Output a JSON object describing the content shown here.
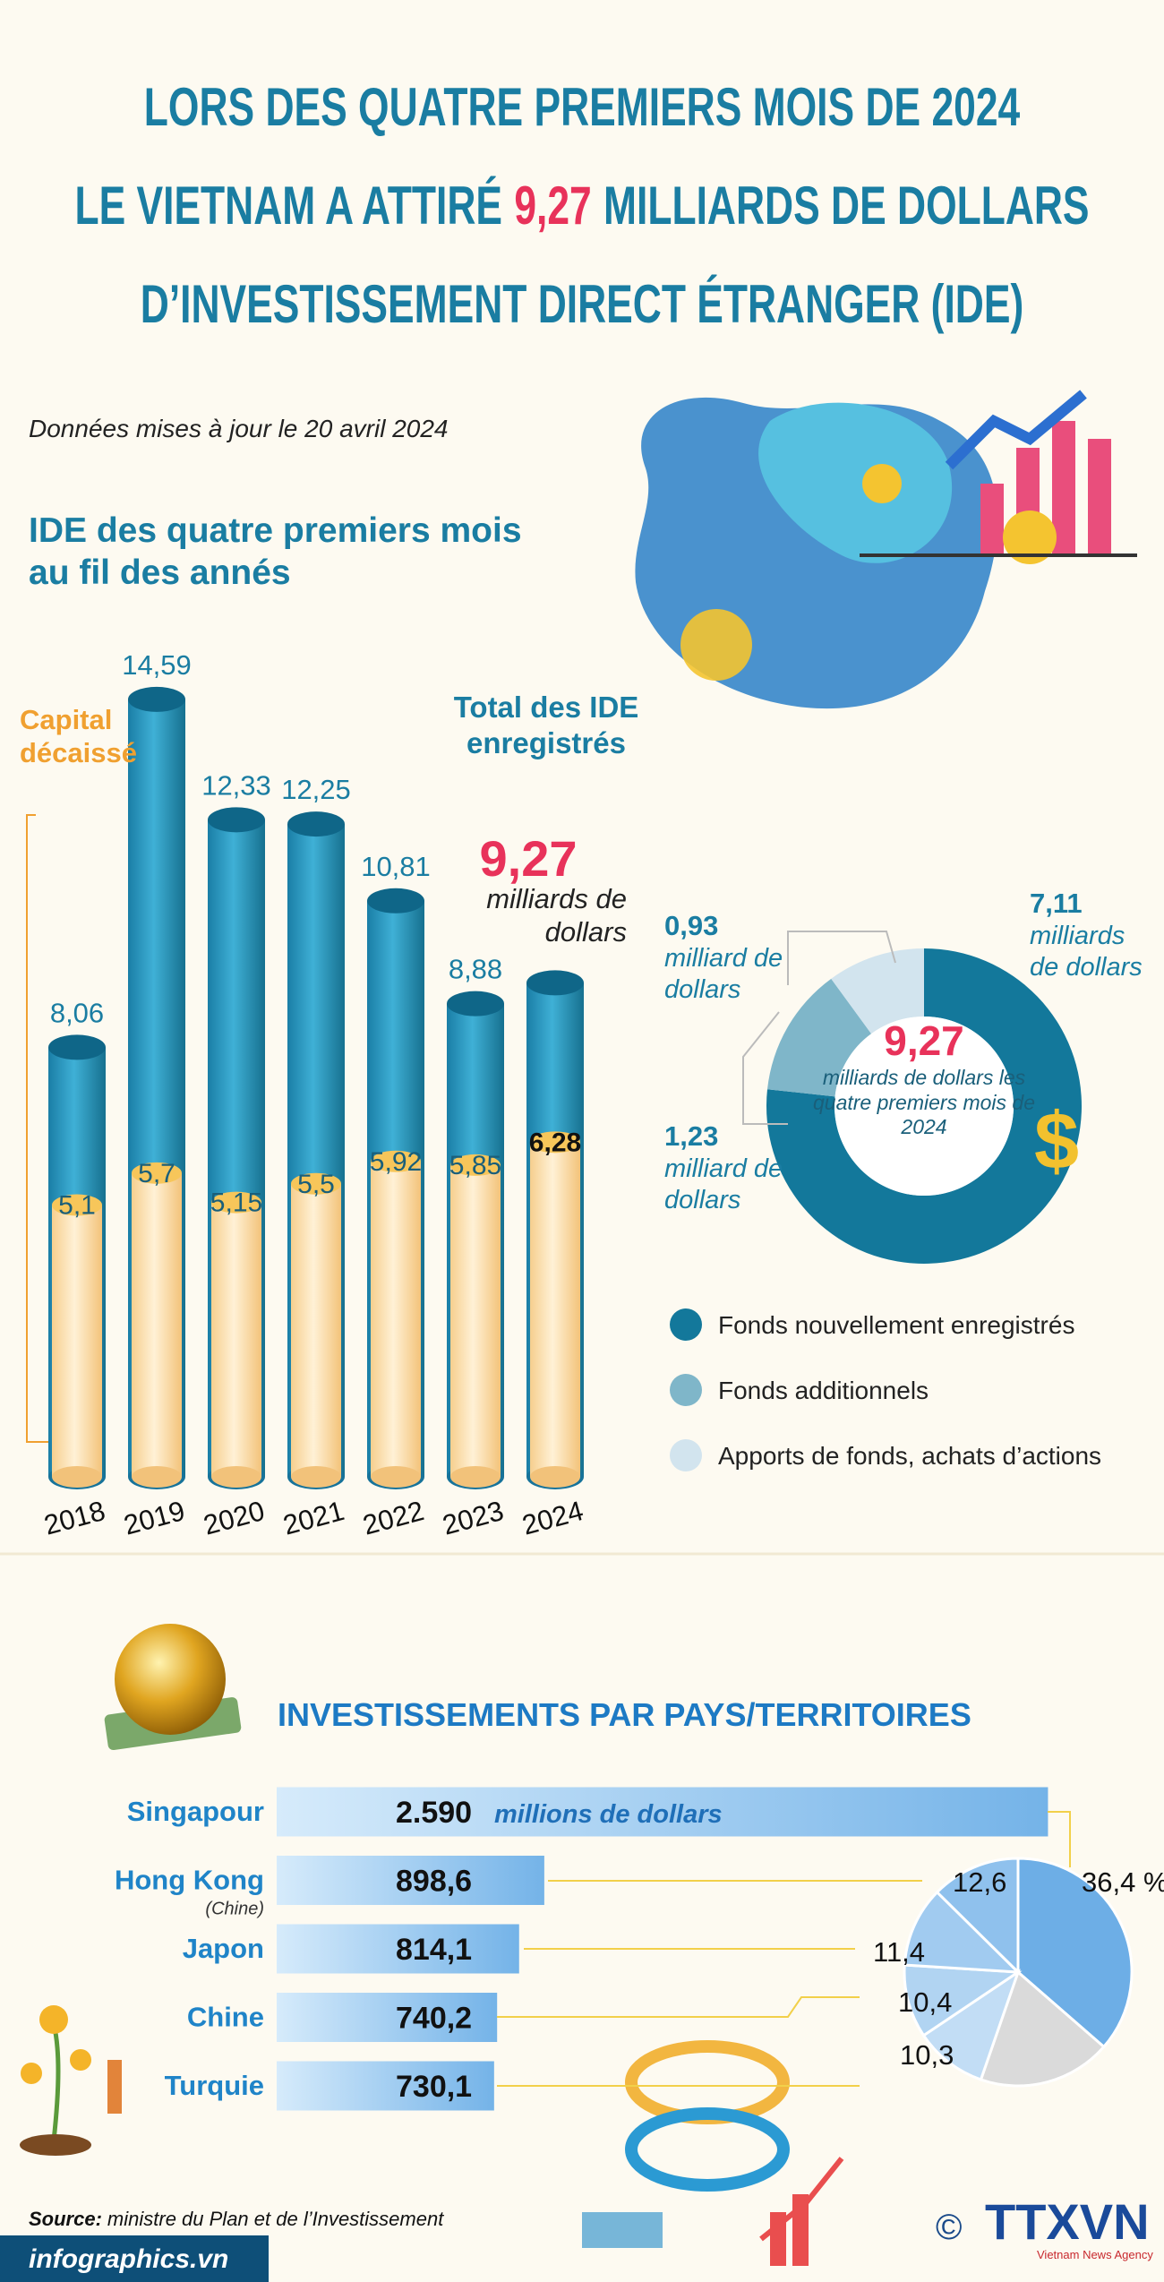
{
  "header": {
    "title_line_1": "LORS DES QUATRE PREMIERS MOIS DE 2024",
    "title_line_2_before": "LE VIETNAM A ATTIRÉ",
    "title_line_2_highlight": "9,27",
    "title_line_2_after": "MILLIARDS DE DOLLARS",
    "title_line_3": "D’INVESTISSEMENT DIRECT ÉTRANGER (IDE)"
  },
  "chart_data": [
    {
      "type": "bar",
      "subtitle": "Données mises à jour le 20 avril 2024",
      "title": "IDE des quatre premiers mois au fil des annés",
      "categories": [
        "2018",
        "2019",
        "2020",
        "2021",
        "2022",
        "2023",
        "2024"
      ],
      "series": [
        {
          "name": "Total des IDE enregistrés",
          "color": "#1f8db5",
          "values": [
            8.06,
            14.59,
            12.33,
            12.25,
            10.81,
            8.88,
            9.27
          ],
          "value_labels": [
            "8,06",
            "14,59",
            "12,33",
            "12,25",
            "10,81",
            "8,88",
            "9,27"
          ]
        },
        {
          "name": "Capital décaissé",
          "color": "#fde2b2",
          "values": [
            5.1,
            5.7,
            5.15,
            5.5,
            5.92,
            5.85,
            6.28
          ],
          "value_labels": [
            "5,1",
            "5,7",
            "5,15",
            "5,5",
            "5,92",
            "5,85",
            "6,28"
          ]
        }
      ],
      "annotation": "milliards de dollars"
    },
    {
      "type": "donut",
      "categories": [
        "Fonds nouvellement enregistrés",
        "Fonds additionnels",
        "Apports de fonds, achats d’actions"
      ],
      "values": [
        7.11,
        1.23,
        0.93
      ],
      "value_labels": [
        "7,11",
        "1,23",
        "0,93"
      ],
      "value_units": [
        "milliards de dollars",
        "milliard de dollars",
        "milliard de dollars"
      ],
      "colors": [
        "#13789b",
        "#7fb6c9",
        "#d2e4ee"
      ],
      "center_label": "9,27",
      "center_caption": "milliards de dollars les quatre premiers mois de 2024"
    },
    {
      "type": "hbar",
      "title": "INVESTISSEMENTS PAR PAYS/TERRITOIRES",
      "categories": [
        "Singapour",
        "Hong Kong",
        "Japon",
        "Chine",
        "Turquie"
      ],
      "category_notes": [
        null,
        "(Chine)",
        null,
        null,
        null
      ],
      "values": [
        2590,
        898.6,
        814.1,
        740.2,
        730.1
      ],
      "value_labels": [
        "2.590",
        "898,6",
        "814,1",
        "740,2",
        "730,1"
      ],
      "unit": "millions de dollars",
      "color": "#7ab8ea"
    },
    {
      "type": "pie",
      "values": [
        36.4,
        12.6,
        11.4,
        10.4,
        10.3,
        18.9
      ],
      "value_labels": [
        "36,4 %",
        "12,6",
        "11,4",
        "10,4",
        "10,3",
        null
      ],
      "colors": [
        "#6daee6",
        "#8fc1ed",
        "#a1cbf0",
        "#b1d4f2",
        "#c2ddf5",
        "#dadada"
      ]
    }
  ],
  "footer": {
    "source_label": "Source:",
    "source": "ministre du Plan et de l’Investissement",
    "site": "infographics.vn",
    "copyright": "©",
    "logo": "TTXVN",
    "logo_sub": "Vietnam News Agency"
  }
}
